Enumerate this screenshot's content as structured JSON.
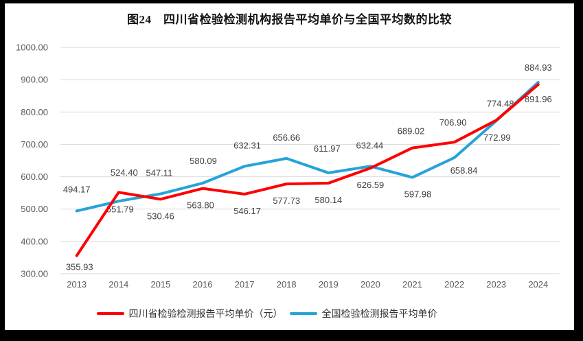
{
  "title": "图24　四川省检验检测机构报告平均单价与全国平均数的比较",
  "colors": {
    "sichuan_red": "#fe0000",
    "national_blue": "#25a3db",
    "gridline": "#d9d9d9",
    "axis_text": "#595959",
    "data_label_text": "#404040",
    "frame": "#000000",
    "background": "#ffffff"
  },
  "chart_data": {
    "type": "line",
    "title": "图24　四川省检验检测机构报告平均单价与全国平均数的比较",
    "categories": [
      "2013",
      "2014",
      "2015",
      "2016",
      "2017",
      "2018",
      "2019",
      "2020",
      "2021",
      "2022",
      "2023",
      "2024"
    ],
    "series": [
      {
        "name": "四川省检验检测报告平均单价（元）",
        "color": "#fe0000",
        "values": [
          355.93,
          551.79,
          530.46,
          563.8,
          546.17,
          577.73,
          580.14,
          626.59,
          689.02,
          706.9,
          774.48,
          884.93
        ],
        "label_side": [
          "below",
          "below",
          "below",
          "below",
          "below",
          "below",
          "below",
          "below",
          "above",
          "above",
          "above",
          "above"
        ],
        "label_dx": [
          4,
          2,
          0,
          -3,
          4,
          0,
          0,
          0,
          -2,
          -2,
          6,
          0
        ],
        "label_dy": [
          -8,
          0,
          0,
          0,
          0,
          0,
          0,
          0,
          0,
          -4,
          0,
          0
        ]
      },
      {
        "name": "全国检验检测报告平均单价",
        "color": "#25a3db",
        "values": [
          494.17,
          524.4,
          547.11,
          580.09,
          632.31,
          656.66,
          611.97,
          632.44,
          597.98,
          658.84,
          772.99,
          891.96
        ],
        "label_side": [
          "above",
          "above",
          "above",
          "above",
          "above",
          "above",
          "above",
          "above",
          "below",
          "below",
          "below",
          "below"
        ],
        "label_dx": [
          0,
          8,
          -2,
          1,
          4,
          0,
          -2,
          -1,
          8,
          14,
          1,
          0
        ],
        "label_dy": [
          -7,
          -17,
          -6,
          -8,
          -6,
          -6,
          -11,
          -6,
          0,
          -6,
          0,
          0
        ]
      }
    ],
    "ylim": [
      300,
      1000
    ],
    "ytick_step": 100,
    "ytick_labels": [
      "300.00",
      "400.00",
      "500.00",
      "600.00",
      "700.00",
      "800.00",
      "900.00",
      "1000.00"
    ],
    "value_decimals": 2,
    "grid": true,
    "legend_position": "bottom"
  }
}
